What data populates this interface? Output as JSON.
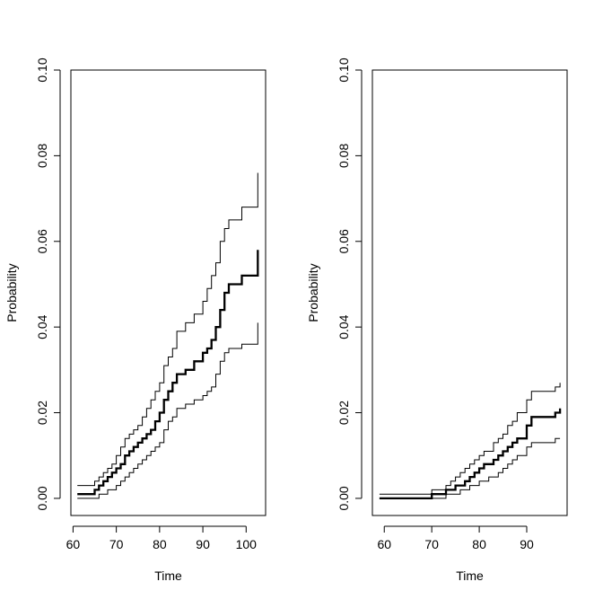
{
  "chart_data": [
    {
      "type": "line",
      "xlabel": "Time",
      "ylabel": "Probability",
      "xlim": [
        59.5,
        104.5
      ],
      "ylim": [
        -0.004,
        0.1
      ],
      "xticks": [
        "60",
        "70",
        "80",
        "90",
        "100"
      ],
      "yticks": [
        "0.00",
        "0.02",
        "0.04",
        "0.06",
        "0.08",
        "0.10"
      ],
      "grid": false,
      "series": [
        {
          "role": "estimate",
          "x": [
            61,
            65,
            66,
            67,
            68,
            69,
            70,
            71,
            72,
            73,
            74,
            75,
            76,
            77,
            78,
            79,
            80,
            81,
            82,
            83,
            84,
            86,
            88,
            90,
            91,
            92,
            93,
            94,
            95,
            96,
            98,
            99,
            102,
            102.7
          ],
          "y": [
            0.001,
            0.002,
            0.003,
            0.004,
            0.005,
            0.006,
            0.007,
            0.008,
            0.01,
            0.011,
            0.012,
            0.013,
            0.014,
            0.015,
            0.016,
            0.018,
            0.02,
            0.023,
            0.025,
            0.027,
            0.029,
            0.03,
            0.032,
            0.034,
            0.035,
            0.037,
            0.04,
            0.044,
            0.048,
            0.05,
            0.05,
            0.052,
            0.052,
            0.058
          ]
        },
        {
          "role": "upper",
          "x": [
            61,
            65,
            66,
            67,
            68,
            69,
            70,
            71,
            72,
            73,
            74,
            75,
            76,
            77,
            78,
            79,
            80,
            81,
            82,
            83,
            84,
            86,
            88,
            90,
            91,
            92,
            93,
            94,
            95,
            96,
            98,
            99,
            102,
            102.7
          ],
          "y": [
            0.003,
            0.004,
            0.005,
            0.006,
            0.007,
            0.008,
            0.01,
            0.012,
            0.014,
            0.015,
            0.016,
            0.017,
            0.019,
            0.021,
            0.023,
            0.025,
            0.027,
            0.031,
            0.033,
            0.035,
            0.039,
            0.041,
            0.043,
            0.046,
            0.049,
            0.052,
            0.055,
            0.06,
            0.063,
            0.065,
            0.065,
            0.068,
            0.068,
            0.076
          ]
        },
        {
          "role": "lower",
          "x": [
            61,
            65,
            66,
            67,
            68,
            69,
            70,
            71,
            72,
            73,
            74,
            75,
            76,
            77,
            78,
            79,
            80,
            81,
            82,
            83,
            84,
            86,
            88,
            90,
            91,
            92,
            93,
            94,
            95,
            96,
            98,
            99,
            102,
            102.7
          ],
          "y": [
            0.0,
            0.0,
            0.001,
            0.001,
            0.002,
            0.002,
            0.003,
            0.004,
            0.005,
            0.006,
            0.007,
            0.008,
            0.009,
            0.01,
            0.011,
            0.012,
            0.013,
            0.016,
            0.018,
            0.019,
            0.021,
            0.022,
            0.023,
            0.024,
            0.025,
            0.026,
            0.029,
            0.032,
            0.034,
            0.035,
            0.035,
            0.036,
            0.036,
            0.041
          ]
        }
      ]
    },
    {
      "type": "line",
      "xlabel": "Time",
      "ylabel": "Probability",
      "xlim": [
        57.5,
        98.5
      ],
      "ylim": [
        -0.004,
        0.1
      ],
      "xticks": [
        "60",
        "70",
        "80",
        "90"
      ],
      "yticks": [
        "0.00",
        "0.02",
        "0.04",
        "0.06",
        "0.08",
        "0.10"
      ],
      "grid": false,
      "series": [
        {
          "role": "estimate",
          "x": [
            59,
            68,
            70,
            72,
            73,
            74,
            75,
            76,
            77,
            78,
            79,
            80,
            81,
            82,
            83,
            84,
            85,
            86,
            87,
            88,
            90,
            91,
            94,
            95,
            96,
            97
          ],
          "y": [
            0.0,
            0.0,
            0.001,
            0.001,
            0.002,
            0.002,
            0.003,
            0.003,
            0.004,
            0.005,
            0.006,
            0.007,
            0.008,
            0.008,
            0.009,
            0.01,
            0.011,
            0.012,
            0.013,
            0.014,
            0.017,
            0.019,
            0.019,
            0.019,
            0.02,
            0.021
          ]
        },
        {
          "role": "upper",
          "x": [
            59,
            68,
            70,
            72,
            73,
            74,
            75,
            76,
            77,
            78,
            79,
            80,
            81,
            82,
            83,
            84,
            85,
            86,
            87,
            88,
            90,
            91,
            94,
            95,
            96,
            97
          ],
          "y": [
            0.001,
            0.001,
            0.002,
            0.002,
            0.003,
            0.004,
            0.005,
            0.006,
            0.007,
            0.008,
            0.009,
            0.01,
            0.011,
            0.011,
            0.013,
            0.014,
            0.015,
            0.017,
            0.018,
            0.02,
            0.023,
            0.025,
            0.025,
            0.025,
            0.026,
            0.027
          ]
        },
        {
          "role": "lower",
          "x": [
            59,
            68,
            70,
            72,
            73,
            74,
            75,
            76,
            77,
            78,
            79,
            80,
            81,
            82,
            83,
            84,
            85,
            86,
            87,
            88,
            90,
            91,
            94,
            95,
            96,
            97
          ],
          "y": [
            0.0,
            0.0,
            0.0,
            0.0,
            0.001,
            0.001,
            0.001,
            0.002,
            0.002,
            0.003,
            0.003,
            0.004,
            0.004,
            0.005,
            0.005,
            0.006,
            0.007,
            0.008,
            0.009,
            0.01,
            0.012,
            0.013,
            0.013,
            0.013,
            0.014,
            0.014
          ]
        }
      ]
    }
  ]
}
